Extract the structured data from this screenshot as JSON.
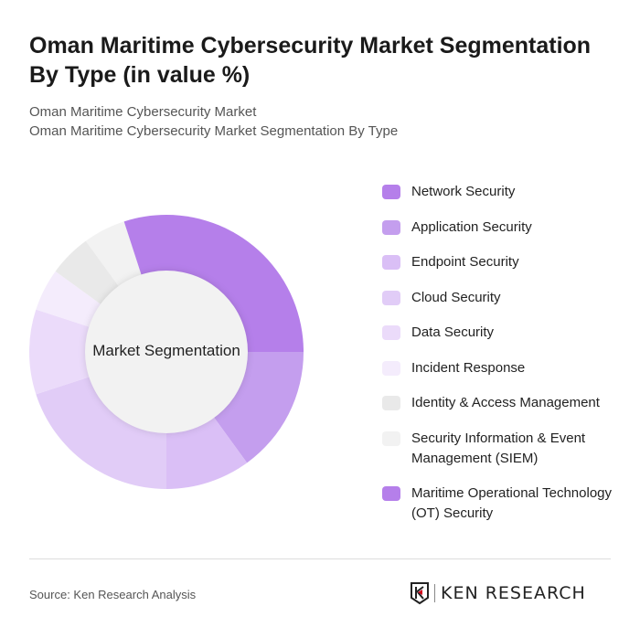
{
  "title": "Oman Maritime Cybersecurity Market Segmentation By Type (in value %)",
  "subtitle1": "Oman Maritime Cybersecurity Market",
  "subtitle2": "Oman Maritime Cybersecurity Market Segmentation By Type",
  "source": "Source: Ken Research Analysis",
  "logo": {
    "text": "KEN RESEARCH",
    "accent": "#d0021b"
  },
  "chart_data": {
    "type": "pie",
    "variant": "donut",
    "center_label": "Market Segmentation",
    "legend_position": "right",
    "categories": [
      "Network Security",
      "Application Security",
      "Endpoint Security",
      "Cloud Security",
      "Data Security",
      "Incident Response",
      "Identity & Access Management",
      "Security Information & Event Management (SIEM)",
      "Maritime Operational Technology (OT) Security"
    ],
    "values": [
      25,
      15,
      10,
      20,
      10,
      5,
      5,
      5,
      5
    ],
    "colors": [
      "#b57fea",
      "#c49eee",
      "#dabff6",
      "#e1ccf7",
      "#ebdbfa",
      "#f4ecfc",
      "#e9e9e9",
      "#f2f2f2",
      "#b57fea"
    ]
  }
}
